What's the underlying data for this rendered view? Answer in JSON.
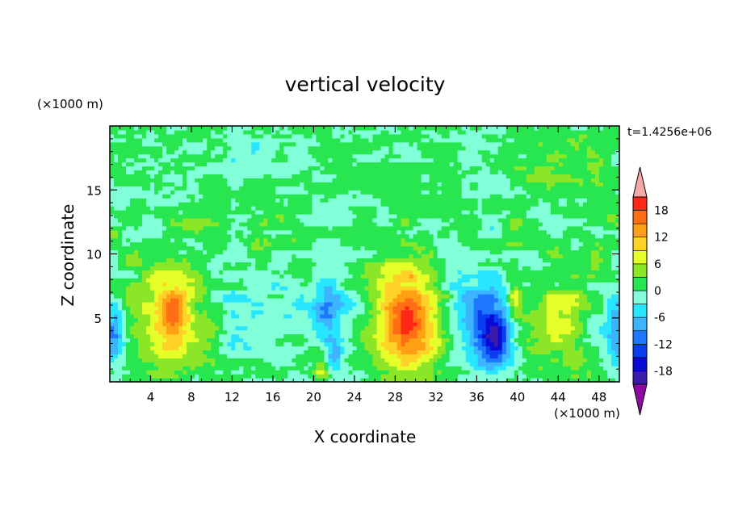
{
  "chart_data": {
    "type": "heatmap",
    "title": "vertical velocity",
    "xlabel": "X coordinate",
    "ylabel": "Z coordinate",
    "x_unit_label": "(×1000 m)",
    "y_unit_label": "(×1000 m)",
    "time_label": "t=1.4256e+06",
    "xlim": [
      0,
      50
    ],
    "ylim": [
      0,
      20
    ],
    "x_ticks": [
      "4",
      "8",
      "12",
      "16",
      "20",
      "24",
      "28",
      "32",
      "36",
      "40",
      "44",
      "48"
    ],
    "y_ticks": [
      "5",
      "10",
      "15"
    ],
    "x_tick_values": [
      4,
      8,
      12,
      16,
      20,
      24,
      28,
      32,
      36,
      40,
      44,
      48
    ],
    "y_tick_values": [
      5,
      10,
      15
    ],
    "colorbar": {
      "levels": [
        -21,
        -18,
        -15,
        -12,
        -9,
        -6,
        -3,
        0,
        3,
        6,
        9,
        12,
        15,
        18,
        21
      ],
      "tick_labels": [
        "18",
        "12",
        "6",
        "0",
        "-6",
        "-12",
        "-18"
      ],
      "tick_values": [
        18,
        12,
        6,
        0,
        -6,
        -12,
        -18
      ],
      "colors": [
        "#7a0a9e",
        "#3a1aa8",
        "#0a0ad8",
        "#0a3cf0",
        "#1e78ff",
        "#3cb4ff",
        "#28e6ff",
        "#80ffd8",
        "#28e650",
        "#8ce628",
        "#e6ff28",
        "#ffd228",
        "#ffa014",
        "#ff6e14",
        "#ff2814",
        "#dc0a1e",
        "#f5a0a0"
      ],
      "under_color": "#8c0aa0",
      "over_color": "#f5a8a8"
    },
    "features": [
      {
        "x": 6,
        "z": 5,
        "sx": 2.2,
        "sz": 2.8,
        "amp": 11
      },
      {
        "x": 6.3,
        "z": 5.2,
        "sx": 0.9,
        "sz": 1.4,
        "amp": 6
      },
      {
        "x": 29,
        "z": 5,
        "sx": 2.8,
        "sz": 3.2,
        "amp": 14
      },
      {
        "x": 29.2,
        "z": 4.8,
        "sx": 1.2,
        "sz": 1.6,
        "amp": 6
      },
      {
        "x": 37.3,
        "z": 4,
        "sx": 1.6,
        "sz": 2.2,
        "amp": -13
      },
      {
        "x": 38,
        "z": 3.3,
        "sx": 0.7,
        "sz": 1.0,
        "amp": -8
      },
      {
        "x": 39.8,
        "z": 6.2,
        "sx": 0.4,
        "sz": 0.9,
        "amp": 7
      },
      {
        "x": 44,
        "z": 4.5,
        "sx": 2.2,
        "sz": 2.5,
        "amp": 6
      },
      {
        "x": 21.2,
        "z": 6,
        "sx": 0.9,
        "sz": 1.8,
        "amp": -9
      },
      {
        "x": 22,
        "z": 2,
        "sx": 0.6,
        "sz": 1.0,
        "amp": -8
      },
      {
        "x": 20.8,
        "z": 1.2,
        "sx": 0.6,
        "sz": 0.8,
        "amp": 6
      },
      {
        "x": 10,
        "z": 3.5,
        "sx": 0.8,
        "sz": 1.5,
        "amp": 4
      },
      {
        "x": 0.4,
        "z": 4,
        "sx": 0.7,
        "sz": 2.0,
        "amp": -9
      },
      {
        "x": 49.6,
        "z": 4,
        "sx": 0.7,
        "sz": 2.0,
        "amp": -9
      },
      {
        "x": 47.5,
        "z": 4,
        "sx": 0.8,
        "sz": 1.4,
        "amp": -4
      },
      {
        "x": 14,
        "z": 6,
        "sx": 5,
        "sz": 3,
        "amp": -4
      },
      {
        "x": 25,
        "z": 6,
        "sx": 2,
        "sz": 3,
        "amp": -4
      },
      {
        "x": 34.5,
        "z": 6,
        "sx": 2,
        "sz": 3,
        "amp": -5
      },
      {
        "x": 15.5,
        "z": 10,
        "sx": 5,
        "sz": 3,
        "amp": 2
      },
      {
        "x": 44,
        "z": 17,
        "sx": 2.5,
        "sz": 1.5,
        "amp": 2.5
      },
      {
        "x": 14,
        "z": 17.5,
        "sx": 2.5,
        "sz": 1.5,
        "amp": -3
      }
    ],
    "grid": false,
    "legend": "right-colorbar"
  }
}
